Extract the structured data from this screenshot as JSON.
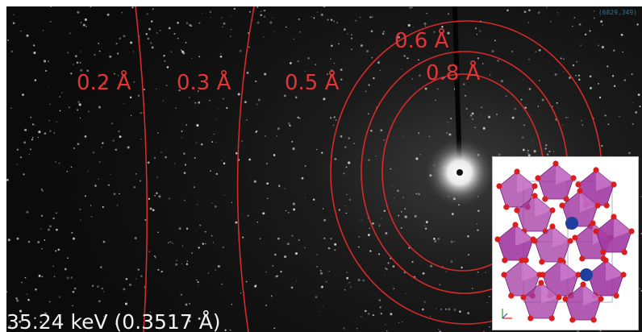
{
  "diffraction": {
    "resolution_rings": [
      {
        "label": "0.2 Å"
      },
      {
        "label": "0.3 Å"
      },
      {
        "label": "0.5 Å"
      },
      {
        "label": "0.6 Å"
      },
      {
        "label": "0.8 Å"
      }
    ],
    "energy_label": "35.24 keV (0.3517 Å)",
    "corner_id": "(6829,349)"
  },
  "colors": {
    "ring": "#d62a2a",
    "label": "#e23636",
    "background": "#111111",
    "octahedron": "#a23aa3",
    "oxygen": "#d81e1e",
    "cation": "#1f3f9f"
  },
  "inset": {
    "subject": "crystal-structure-octahedra"
  }
}
